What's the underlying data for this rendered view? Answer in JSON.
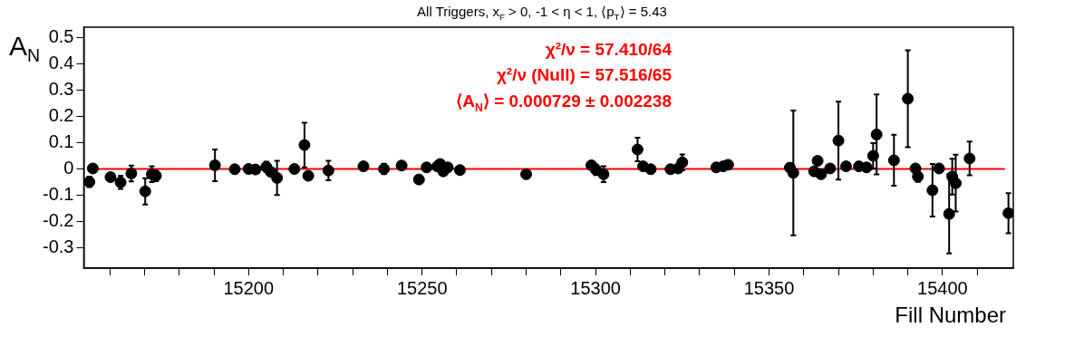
{
  "chart_data": {
    "type": "scatter",
    "title": "All Triggers, x$_{F}$ > 0, -1 < η < 1, ⟨p$_{T}$⟩ = 5.43",
    "xlabel": "Fill Number",
    "ylabel": "A$_{N}$",
    "annotations": [
      "χ²/ν = 57.410/64",
      "χ²/ν (Null) = 57.516/65",
      "⟨A$_{N}$⟩ = 0.000729 ± 0.002238"
    ],
    "xlim": [
      15152.5,
      15420.4
    ],
    "ylim": [
      -0.376,
      0.54
    ],
    "xticks": [
      {
        "value": 15160,
        "label": null
      },
      {
        "value": 15170,
        "label": null
      },
      {
        "value": 15180,
        "label": null
      },
      {
        "value": 15190,
        "label": null
      },
      15200,
      {
        "value": 15210,
        "label": null
      },
      {
        "value": 15220,
        "label": null
      },
      {
        "value": 15230,
        "label": null
      },
      {
        "value": 15240,
        "label": null
      },
      15250,
      {
        "value": 15260,
        "label": null
      },
      {
        "value": 15270,
        "label": null
      },
      {
        "value": 15280,
        "label": null
      },
      {
        "value": 15290,
        "label": null
      },
      15300,
      {
        "value": 15310,
        "label": null
      },
      {
        "value": 15320,
        "label": null
      },
      {
        "value": 15330,
        "label": null
      },
      {
        "value": 15340,
        "label": null
      },
      15350,
      {
        "value": 15360,
        "label": null
      },
      {
        "value": 15370,
        "label": null
      },
      {
        "value": 15380,
        "label": null
      },
      {
        "value": 15390,
        "label": null
      },
      15400,
      {
        "value": 15410,
        "label": null
      }
    ],
    "yticks": [
      -0.3,
      -0.2,
      -0.1,
      0,
      0.1,
      0.2,
      0.3,
      0.4,
      0.5
    ],
    "grid": false,
    "marker": "circle",
    "series": [
      {
        "color": "#000000",
        "x": [
          15154.1,
          15155.1,
          15160.2,
          15163.1,
          15166.2,
          15170.2,
          15172.1,
          15173.3,
          15190.3,
          15196.0,
          15200.0,
          15202.0,
          15205.1,
          15206.4,
          15208.2,
          15213.2,
          15216.1,
          15217.2,
          15223.0,
          15233.1,
          15239.0,
          15244.1,
          15249.1,
          15251.3,
          15254.4,
          15255.2,
          15256.1,
          15257.4,
          15260.9,
          15280.0,
          15298.8,
          15300.1,
          15302.3,
          15312.1,
          15313.7,
          15315.9,
          15321.6,
          15323.8,
          15325.0,
          15334.8,
          15336.8,
          15338.2,
          15356.0,
          15357.0,
          15363.0,
          15364.0,
          15365.0,
          15367.6,
          15370.0,
          15372.2,
          15375.9,
          15378.1,
          15380.0,
          15381.0,
          15386.0,
          15390.0,
          15392.2,
          15392.9,
          15397.1,
          15399.0,
          15401.9,
          15402.8,
          15403.8,
          15407.8,
          15419.0
        ],
        "values": [
          -0.048,
          0.003,
          -0.03,
          -0.05,
          -0.016,
          -0.084,
          -0.019,
          -0.025,
          0.015,
          0.0,
          0.001,
          -0.001,
          0.009,
          -0.01,
          -0.033,
          0.001,
          0.092,
          -0.025,
          -0.005,
          0.011,
          0.001,
          0.014,
          -0.039,
          0.007,
          0.011,
          0.02,
          -0.008,
          0.007,
          -0.003,
          -0.019,
          0.015,
          -0.002,
          -0.019,
          0.075,
          0.011,
          0.0,
          0.0,
          0.003,
          0.026,
          0.007,
          0.011,
          0.017,
          0.006,
          -0.014,
          -0.008,
          0.032,
          -0.019,
          0.003,
          0.109,
          0.011,
          0.011,
          0.007,
          0.051,
          0.132,
          0.034,
          0.268,
          0.003,
          -0.028,
          -0.08,
          0.003,
          -0.17,
          -0.028,
          -0.053,
          0.041,
          -0.167
        ],
        "errors": [
          0.02,
          null,
          null,
          0.025,
          0.03,
          0.05,
          0.03,
          0.02,
          0.06,
          null,
          null,
          null,
          0.02,
          null,
          0.065,
          null,
          0.085,
          null,
          0.037,
          null,
          0.02,
          null,
          null,
          null,
          null,
          null,
          null,
          null,
          null,
          null,
          null,
          0.02,
          0.03,
          0.045,
          null,
          null,
          null,
          null,
          0.03,
          null,
          null,
          null,
          null,
          0.237,
          null,
          null,
          null,
          null,
          0.148,
          null,
          null,
          null,
          0.048,
          0.152,
          0.097,
          0.184,
          null,
          0.02,
          0.1,
          null,
          0.15,
          0.068,
          0.108,
          0.064,
          0.076
        ]
      },
      {
        "type": "line",
        "marker": "none",
        "color": "#ff0000",
        "x": [
          15155,
          15418
        ],
        "values": [
          0.0007,
          0.0007
        ]
      }
    ]
  }
}
